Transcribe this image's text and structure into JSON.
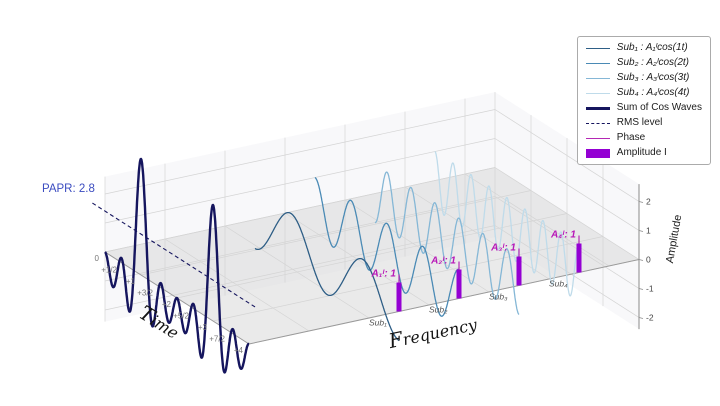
{
  "figure": {
    "papr_annotation": "PAPR: 2.8"
  },
  "chart_data": {
    "type": "line",
    "projection": "3d",
    "title": "",
    "grid": true,
    "legend_position": "upper right",
    "axes": {
      "time": {
        "label": "Time",
        "tick_labels": [
          "0",
          "+1/2",
          "+1",
          "+3/2",
          "+2",
          "+5/2",
          "+3",
          "+7/2",
          "+4"
        ],
        "range": [
          0,
          4
        ]
      },
      "frequency": {
        "label": "Frequency",
        "subcarrier_labels": [
          "Sub₁",
          "Sub₂",
          "Sub₃",
          "Sub₄"
        ]
      },
      "amplitude": {
        "label": "Amplitude",
        "ticks": [
          2,
          1,
          0,
          -1,
          -2
        ],
        "lim": [
          -2,
          2
        ]
      }
    },
    "subcarriers": [
      {
        "name": "Sub₁",
        "legend": "Sub₁ : A₁ᴵcos(1t)",
        "frequency": 1,
        "amplitude": 1,
        "bar_label": "A₁ᴵ: 1",
        "color": "#2e5e86"
      },
      {
        "name": "Sub₂",
        "legend": "Sub₂ : A₂ᴵcos(2t)",
        "frequency": 2,
        "amplitude": 1,
        "bar_label": "A₂ᴵ: 1",
        "color": "#4a8ab5"
      },
      {
        "name": "Sub₃",
        "legend": "Sub₃ : A₃ᴵcos(3t)",
        "frequency": 3,
        "amplitude": 1,
        "bar_label": "A₃ᴵ: 1",
        "color": "#85b7d6"
      },
      {
        "name": "Sub₄",
        "legend": "Sub₄ : A₄ᴵcos(4t)",
        "frequency": 4,
        "amplitude": 1,
        "bar_label": "A₄ᴵ: 1",
        "color": "#bfdbea"
      }
    ],
    "sum_wave": {
      "legend": "Sum of Cos Waves",
      "color": "#15155e",
      "peak_value": 4
    },
    "rms": {
      "legend": "RMS level",
      "value": 1.41,
      "color": "#15155e"
    },
    "phase": {
      "legend": "Phase",
      "color": "#b428b4"
    },
    "amplitude_bars": {
      "legend": "Amplitude I",
      "color": "#9400d3",
      "values": [
        1,
        1,
        1,
        1
      ],
      "label_color": "#b818b8"
    },
    "papr": {
      "label": "PAPR: 2.8",
      "value": 2.8
    }
  }
}
